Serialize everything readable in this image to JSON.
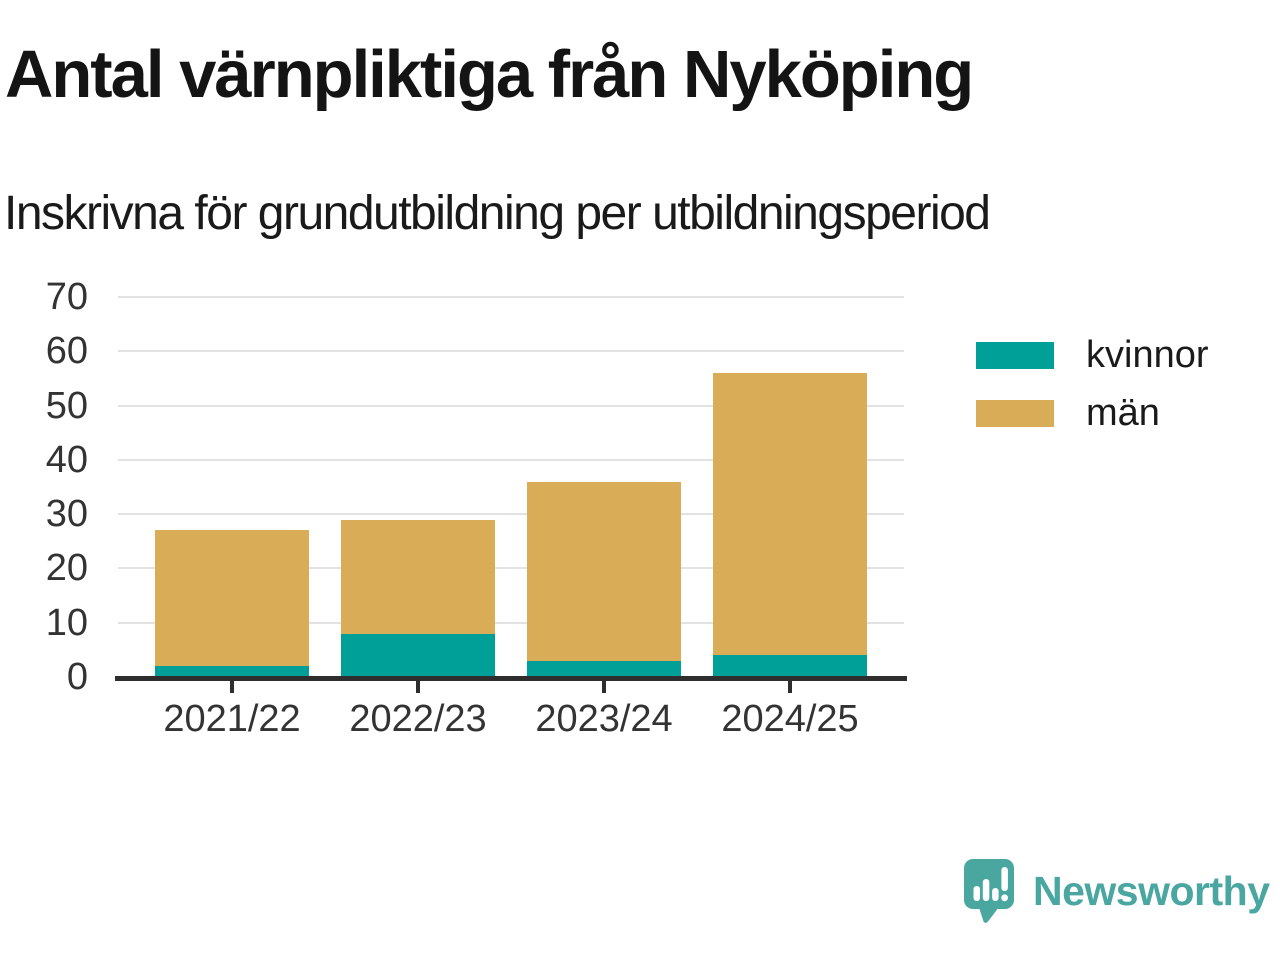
{
  "header": {
    "title": "Antal värnpliktiga från Nyköping",
    "subtitle": "Inskrivna för grundutbildning per utbildningsperiod"
  },
  "chart_data": {
    "type": "bar",
    "stacked": true,
    "title": "Antal värnpliktiga från Nyköping",
    "subtitle": "Inskrivna för grundutbildning per utbildningsperiod",
    "categories": [
      "2021/22",
      "2022/23",
      "2023/24",
      "2024/25"
    ],
    "series": [
      {
        "name": "kvinnor",
        "color": "#00a099",
        "values": [
          2,
          8,
          3,
          4
        ]
      },
      {
        "name": "män",
        "color": "#d9ac57",
        "values": [
          25,
          21,
          33,
          52
        ]
      }
    ],
    "xlabel": "",
    "ylabel": "",
    "ylim": [
      0,
      70
    ],
    "ytick_step": 10,
    "grid": "horizontal",
    "legend_position": "right"
  },
  "footer": {
    "brand": "Newsworthy"
  },
  "icons": {
    "brand_mark": "speech-bubble-bar-chart-exclamation-icon"
  },
  "colors": {
    "kvinnor": "#00a099",
    "man": "#d9ac57",
    "axis": "#2e2e2e",
    "grid": "#e2e2e2",
    "label_text": "#333333",
    "title_text": "#141414",
    "brand_teal": "#4aa6a0"
  }
}
